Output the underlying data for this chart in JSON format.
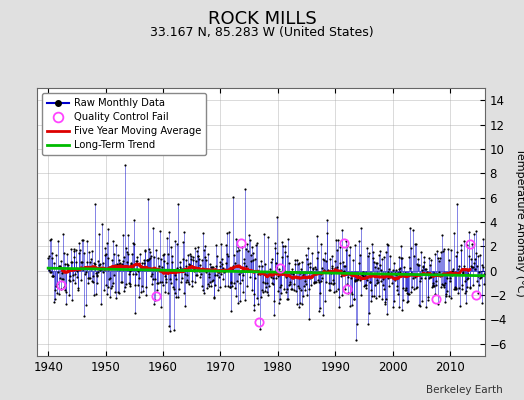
{
  "title": "ROCK MILLS",
  "subtitle": "33.167 N, 85.283 W (United States)",
  "ylabel": "Temperature Anomaly (°C)",
  "attribution": "Berkeley Earth",
  "xlim": [
    1938,
    2016
  ],
  "ylim": [
    -7,
    15
  ],
  "yticks": [
    -6,
    -4,
    -2,
    0,
    2,
    4,
    6,
    8,
    10,
    12,
    14
  ],
  "xticks": [
    1940,
    1950,
    1960,
    1970,
    1980,
    1990,
    2000,
    2010
  ],
  "bg_color": "#e0e0e0",
  "plot_bg": "#ffffff",
  "raw_color": "#0000cc",
  "ma_color": "#dd0000",
  "trend_color": "#00bb00",
  "qc_color": "#ff44ff",
  "seed": 42,
  "title_fontsize": 13,
  "subtitle_fontsize": 9,
  "tick_labelsize": 8.5
}
